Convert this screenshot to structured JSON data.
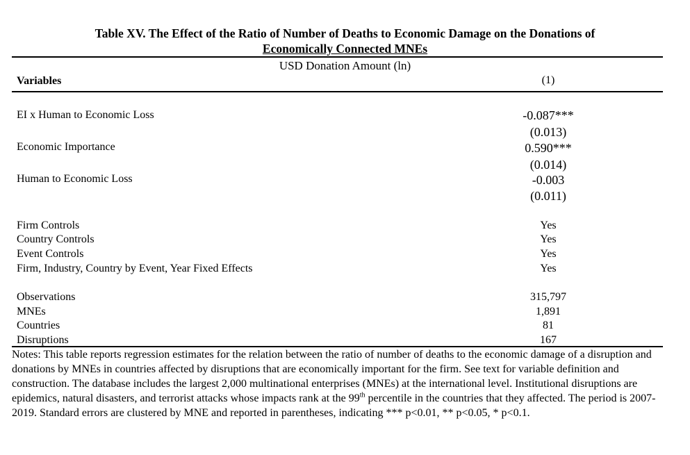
{
  "title": {
    "line1": "Table XV. The Effect of the Ratio of Number of Deaths to Economic Damage on the Donations of",
    "line2": "Economically Connected MNEs"
  },
  "dependent_variable": "USD Donation Amount (ln)",
  "header": {
    "variables": "Variables",
    "column": "(1)"
  },
  "coefficients": [
    {
      "name": "EI x Human to Economic Loss",
      "estimate": "-0.087***",
      "se": "(0.013)"
    },
    {
      "name": "Economic Importance",
      "estimate": "0.590***",
      "se": "(0.014)"
    },
    {
      "name": "Human to Economic Loss",
      "estimate": "-0.003",
      "se": "(0.011)"
    }
  ],
  "controls": [
    {
      "name": "Firm Controls",
      "value": "Yes"
    },
    {
      "name": "Country Controls",
      "value": "Yes"
    },
    {
      "name": "Event Controls",
      "value": "Yes"
    },
    {
      "name": "Firm, Industry, Country by Event, Year Fixed Effects",
      "value": "Yes"
    }
  ],
  "stats": [
    {
      "name": "Observations",
      "value": "315,797"
    },
    {
      "name": "MNEs",
      "value": "1,891"
    },
    {
      "name": "Countries",
      "value": "81"
    },
    {
      "name": "Disruptions",
      "value": "167"
    }
  ],
  "notes": {
    "part1": "Notes: This table reports regression estimates for the relation between the ratio of number of deaths to the economic damage of a disruption and donations by MNEs in countries affected by disruptions that are economically important for the firm. See text for variable definition and construction. The database includes the largest 2,000 multinational enterprises (MNEs) at the international level. Institutional disruptions are epidemics, natural disasters, and terrorist attacks whose impacts rank at the 99",
    "sup": "th",
    "part2": " percentile in the countries that they affected. The period is 2007-2019. Standard errors are clustered by MNE and reported in parentheses, indicating *** p<0.01, ** p<0.05, * p<0.1."
  }
}
